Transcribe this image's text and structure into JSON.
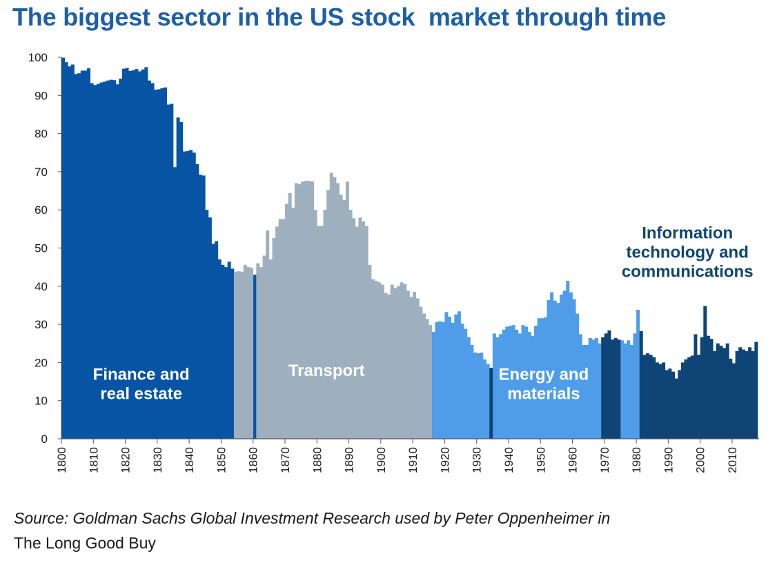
{
  "title": "The biggest sector in the US stock  market through time",
  "source_line1": "Source: Goldman Sachs Global Investment Research used by Peter Oppenheimer in",
  "source_line2": "The Long Good Buy",
  "colors": {
    "title": "#1c5fa8",
    "finance": "#0654a3",
    "transport": "#9eb0be",
    "energy": "#4f9de8",
    "tech": "#0e4576",
    "transport_label": "#ffffff",
    "finance_label": "#ffffff",
    "energy_label": "#ffffff",
    "tech_label": "#0e4576"
  },
  "chart_data": {
    "type": "bar",
    "title": "The biggest sector in the US stock  market through time",
    "xlabel": "",
    "ylabel": "",
    "xlim": [
      1800,
      2017
    ],
    "ylim": [
      0,
      100
    ],
    "y_ticks": [
      "0",
      "10",
      "20",
      "30",
      "40",
      "50",
      "60",
      "70",
      "80",
      "90",
      "100"
    ],
    "x_ticks": [
      "1800",
      "1810",
      "1820",
      "1830",
      "1840",
      "1850",
      "1860",
      "1870",
      "1880",
      "1890",
      "1900",
      "1910",
      "1920",
      "1930",
      "1940",
      "1950",
      "1960",
      "1970",
      "1980",
      "1990",
      "2000",
      "2010"
    ],
    "grid": false,
    "series": [
      {
        "name": "Finance and\nreal estate",
        "sector": "finance",
        "points": [
          [
            1800,
            99.9
          ],
          [
            1801,
            98.7
          ],
          [
            1802,
            97.6
          ],
          [
            1803,
            98.1
          ],
          [
            1804,
            95.6
          ],
          [
            1805,
            95.8
          ],
          [
            1806,
            96.5
          ],
          [
            1807,
            96.5
          ],
          [
            1808,
            97.1
          ],
          [
            1809,
            93.2
          ],
          [
            1810,
            92.7
          ],
          [
            1811,
            93.0
          ],
          [
            1812,
            93.4
          ],
          [
            1813,
            93.6
          ],
          [
            1814,
            93.9
          ],
          [
            1815,
            94.1
          ],
          [
            1816,
            94.0
          ],
          [
            1817,
            92.9
          ],
          [
            1818,
            94.4
          ],
          [
            1819,
            97.0
          ],
          [
            1820,
            97.2
          ],
          [
            1821,
            96.4
          ],
          [
            1822,
            96.6
          ],
          [
            1823,
            96.9
          ],
          [
            1824,
            96.3
          ],
          [
            1825,
            96.8
          ],
          [
            1826,
            97.4
          ],
          [
            1827,
            93.9
          ],
          [
            1828,
            93.2
          ],
          [
            1829,
            91.5
          ],
          [
            1830,
            91.6
          ],
          [
            1831,
            91.9
          ],
          [
            1832,
            92.1
          ],
          [
            1833,
            87.6
          ],
          [
            1834,
            87.8
          ],
          [
            1835,
            71.2
          ],
          [
            1836,
            84.2
          ],
          [
            1837,
            83.0
          ],
          [
            1838,
            75.3
          ],
          [
            1839,
            75.4
          ],
          [
            1840,
            75.7
          ],
          [
            1841,
            75.0
          ],
          [
            1842,
            72.0
          ],
          [
            1843,
            69.2
          ],
          [
            1844,
            69.0
          ],
          [
            1845,
            60.0
          ],
          [
            1846,
            58.0
          ],
          [
            1847,
            51.1
          ],
          [
            1848,
            51.8
          ],
          [
            1849,
            47.0
          ],
          [
            1850,
            45.6
          ],
          [
            1851,
            45.0
          ],
          [
            1852,
            46.4
          ],
          [
            1853,
            44.6
          ],
          [
            1860,
            43.0
          ]
        ]
      },
      {
        "name": "Transport",
        "sector": "transport",
        "points": [
          [
            1854,
            43.8
          ],
          [
            1855,
            43.9
          ],
          [
            1856,
            43.8
          ],
          [
            1857,
            45.6
          ],
          [
            1858,
            45.0
          ],
          [
            1859,
            44.8
          ],
          [
            1861,
            46.0
          ],
          [
            1862,
            45.0
          ],
          [
            1863,
            48.0
          ],
          [
            1864,
            54.6
          ],
          [
            1865,
            47.0
          ],
          [
            1866,
            52.6
          ],
          [
            1867,
            55.6
          ],
          [
            1868,
            57.6
          ],
          [
            1869,
            57.6
          ],
          [
            1870,
            61.6
          ],
          [
            1871,
            64.4
          ],
          [
            1872,
            60.6
          ],
          [
            1873,
            67.0
          ],
          [
            1874,
            66.7
          ],
          [
            1875,
            67.4
          ],
          [
            1876,
            67.6
          ],
          [
            1877,
            67.6
          ],
          [
            1878,
            67.4
          ],
          [
            1879,
            60.0
          ],
          [
            1880,
            55.8
          ],
          [
            1881,
            55.8
          ],
          [
            1882,
            60.0
          ],
          [
            1883,
            65.2
          ],
          [
            1884,
            69.7
          ],
          [
            1885,
            68.6
          ],
          [
            1886,
            67.0
          ],
          [
            1887,
            64.0
          ],
          [
            1888,
            62.6
          ],
          [
            1889,
            67.4
          ],
          [
            1890,
            60.0
          ],
          [
            1891,
            57.8
          ],
          [
            1892,
            55.6
          ],
          [
            1893,
            58.0
          ],
          [
            1894,
            57.0
          ],
          [
            1895,
            55.8
          ],
          [
            1896,
            45.6
          ],
          [
            1897,
            41.8
          ],
          [
            1898,
            41.4
          ],
          [
            1899,
            41.0
          ],
          [
            1900,
            40.4
          ],
          [
            1901,
            38.2
          ],
          [
            1902,
            37.8
          ],
          [
            1903,
            40.4
          ],
          [
            1904,
            39.5
          ],
          [
            1905,
            40.0
          ],
          [
            1906,
            41.0
          ],
          [
            1907,
            40.6
          ],
          [
            1908,
            38.8
          ],
          [
            1909,
            37.2
          ],
          [
            1910,
            38.5
          ],
          [
            1911,
            36.8
          ],
          [
            1912,
            34.6
          ],
          [
            1913,
            32.8
          ],
          [
            1914,
            31.4
          ],
          [
            1915,
            29.8
          ]
        ]
      },
      {
        "name": "Energy and\nmaterials",
        "sector": "energy",
        "points": [
          [
            1916,
            28.0
          ],
          [
            1917,
            30.6
          ],
          [
            1918,
            30.8
          ],
          [
            1919,
            30.6
          ],
          [
            1920,
            33.2
          ],
          [
            1921,
            32.0
          ],
          [
            1922,
            30.4
          ],
          [
            1923,
            32.6
          ],
          [
            1924,
            33.4
          ],
          [
            1925,
            30.2
          ],
          [
            1926,
            28.8
          ],
          [
            1927,
            26.6
          ],
          [
            1928,
            24.6
          ],
          [
            1929,
            22.6
          ],
          [
            1930,
            22.4
          ],
          [
            1931,
            22.6
          ],
          [
            1932,
            20.8
          ],
          [
            1933,
            19.6
          ],
          [
            1935,
            27.6
          ],
          [
            1936,
            26.6
          ],
          [
            1937,
            27.4
          ],
          [
            1938,
            28.6
          ],
          [
            1939,
            29.4
          ],
          [
            1940,
            29.6
          ],
          [
            1941,
            29.8
          ],
          [
            1942,
            28.6
          ],
          [
            1943,
            27.6
          ],
          [
            1944,
            29.8
          ],
          [
            1945,
            29.4
          ],
          [
            1946,
            28.0
          ],
          [
            1947,
            27.0
          ],
          [
            1948,
            29.6
          ],
          [
            1949,
            31.6
          ],
          [
            1950,
            31.6
          ],
          [
            1951,
            31.8
          ],
          [
            1952,
            36.4
          ],
          [
            1953,
            38.4
          ],
          [
            1954,
            36.2
          ],
          [
            1955,
            35.6
          ],
          [
            1956,
            37.8
          ],
          [
            1957,
            38.8
          ],
          [
            1958,
            41.4
          ],
          [
            1959,
            38.4
          ],
          [
            1960,
            36.6
          ],
          [
            1961,
            32.8
          ],
          [
            1962,
            27.4
          ],
          [
            1963,
            24.6
          ],
          [
            1964,
            24.6
          ],
          [
            1965,
            26.4
          ],
          [
            1966,
            26.0
          ],
          [
            1967,
            26.4
          ],
          [
            1968,
            25.0
          ],
          [
            1975,
            25.8
          ],
          [
            1976,
            25.0
          ],
          [
            1977,
            25.8
          ],
          [
            1978,
            24.6
          ],
          [
            1979,
            27.6
          ],
          [
            1980,
            33.8
          ]
        ]
      },
      {
        "name": "Information\ntechnology and\ncommunications",
        "sector": "tech",
        "points": [
          [
            1934,
            18.6
          ],
          [
            1969,
            26.6
          ],
          [
            1970,
            27.6
          ],
          [
            1971,
            28.4
          ],
          [
            1972,
            26.0
          ],
          [
            1973,
            26.4
          ],
          [
            1974,
            26.0
          ],
          [
            1981,
            28.2
          ],
          [
            1982,
            22.0
          ],
          [
            1983,
            22.4
          ],
          [
            1984,
            22.0
          ],
          [
            1985,
            21.4
          ],
          [
            1986,
            20.0
          ],
          [
            1987,
            19.6
          ],
          [
            1988,
            20.0
          ],
          [
            1989,
            18.0
          ],
          [
            1990,
            18.4
          ],
          [
            1991,
            17.6
          ],
          [
            1992,
            15.8
          ],
          [
            1993,
            18.0
          ],
          [
            1994,
            20.0
          ],
          [
            1995,
            20.8
          ],
          [
            1996,
            21.4
          ],
          [
            1997,
            21.8
          ],
          [
            1998,
            27.4
          ],
          [
            1999,
            22.0
          ],
          [
            2000,
            26.6
          ],
          [
            2001,
            34.8
          ],
          [
            2002,
            27.0
          ],
          [
            2003,
            26.2
          ],
          [
            2004,
            23.0
          ],
          [
            2005,
            25.0
          ],
          [
            2006,
            24.4
          ],
          [
            2007,
            23.8
          ],
          [
            2008,
            25.0
          ],
          [
            2009,
            21.0
          ],
          [
            2010,
            19.8
          ],
          [
            2011,
            23.0
          ],
          [
            2012,
            24.0
          ],
          [
            2013,
            23.4
          ],
          [
            2014,
            23.0
          ],
          [
            2015,
            24.0
          ],
          [
            2016,
            23.0
          ],
          [
            2017,
            25.4
          ]
        ]
      }
    ]
  }
}
